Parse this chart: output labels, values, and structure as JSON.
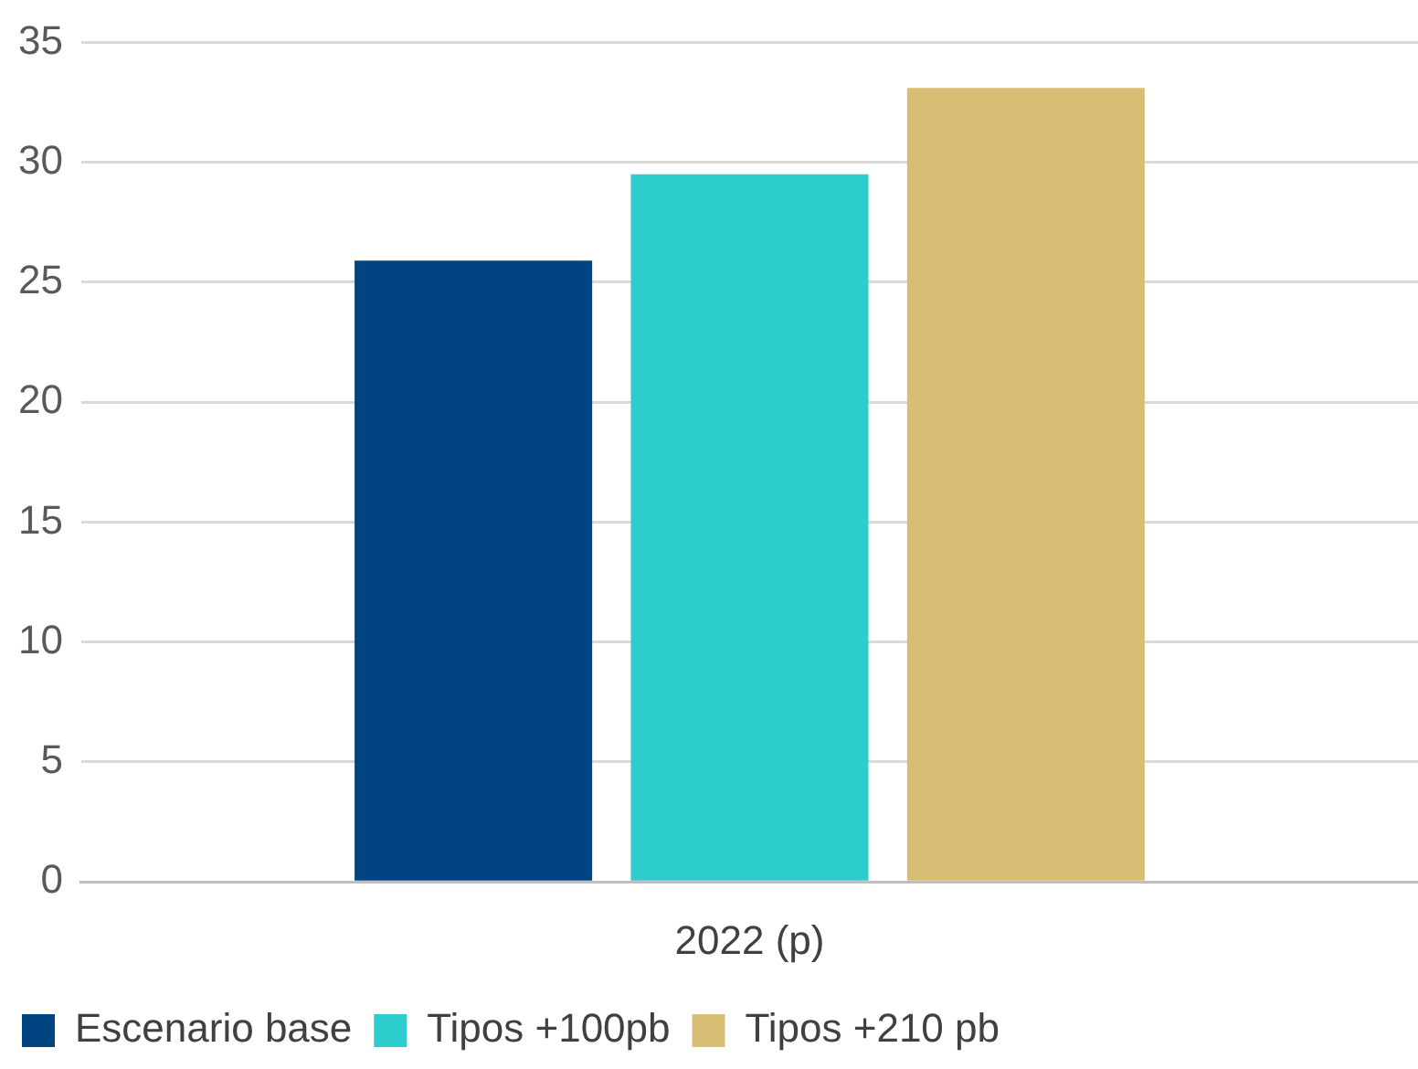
{
  "chart_data": {
    "type": "bar",
    "categories": [
      "2022 (p)"
    ],
    "series": [
      {
        "name": "Escenario base",
        "color": "#004481",
        "values": [
          25.9
        ]
      },
      {
        "name": "Tipos +100pb",
        "color": "#2dcccd",
        "values": [
          29.5
        ]
      },
      {
        "name": "Tipos +210 pb",
        "color": "#d8be75",
        "values": [
          33.1
        ]
      }
    ],
    "ylim": [
      0,
      35
    ],
    "yticks": [
      0,
      5,
      10,
      15,
      20,
      25,
      30,
      35
    ],
    "grid": "y",
    "legend": "bottom left"
  }
}
